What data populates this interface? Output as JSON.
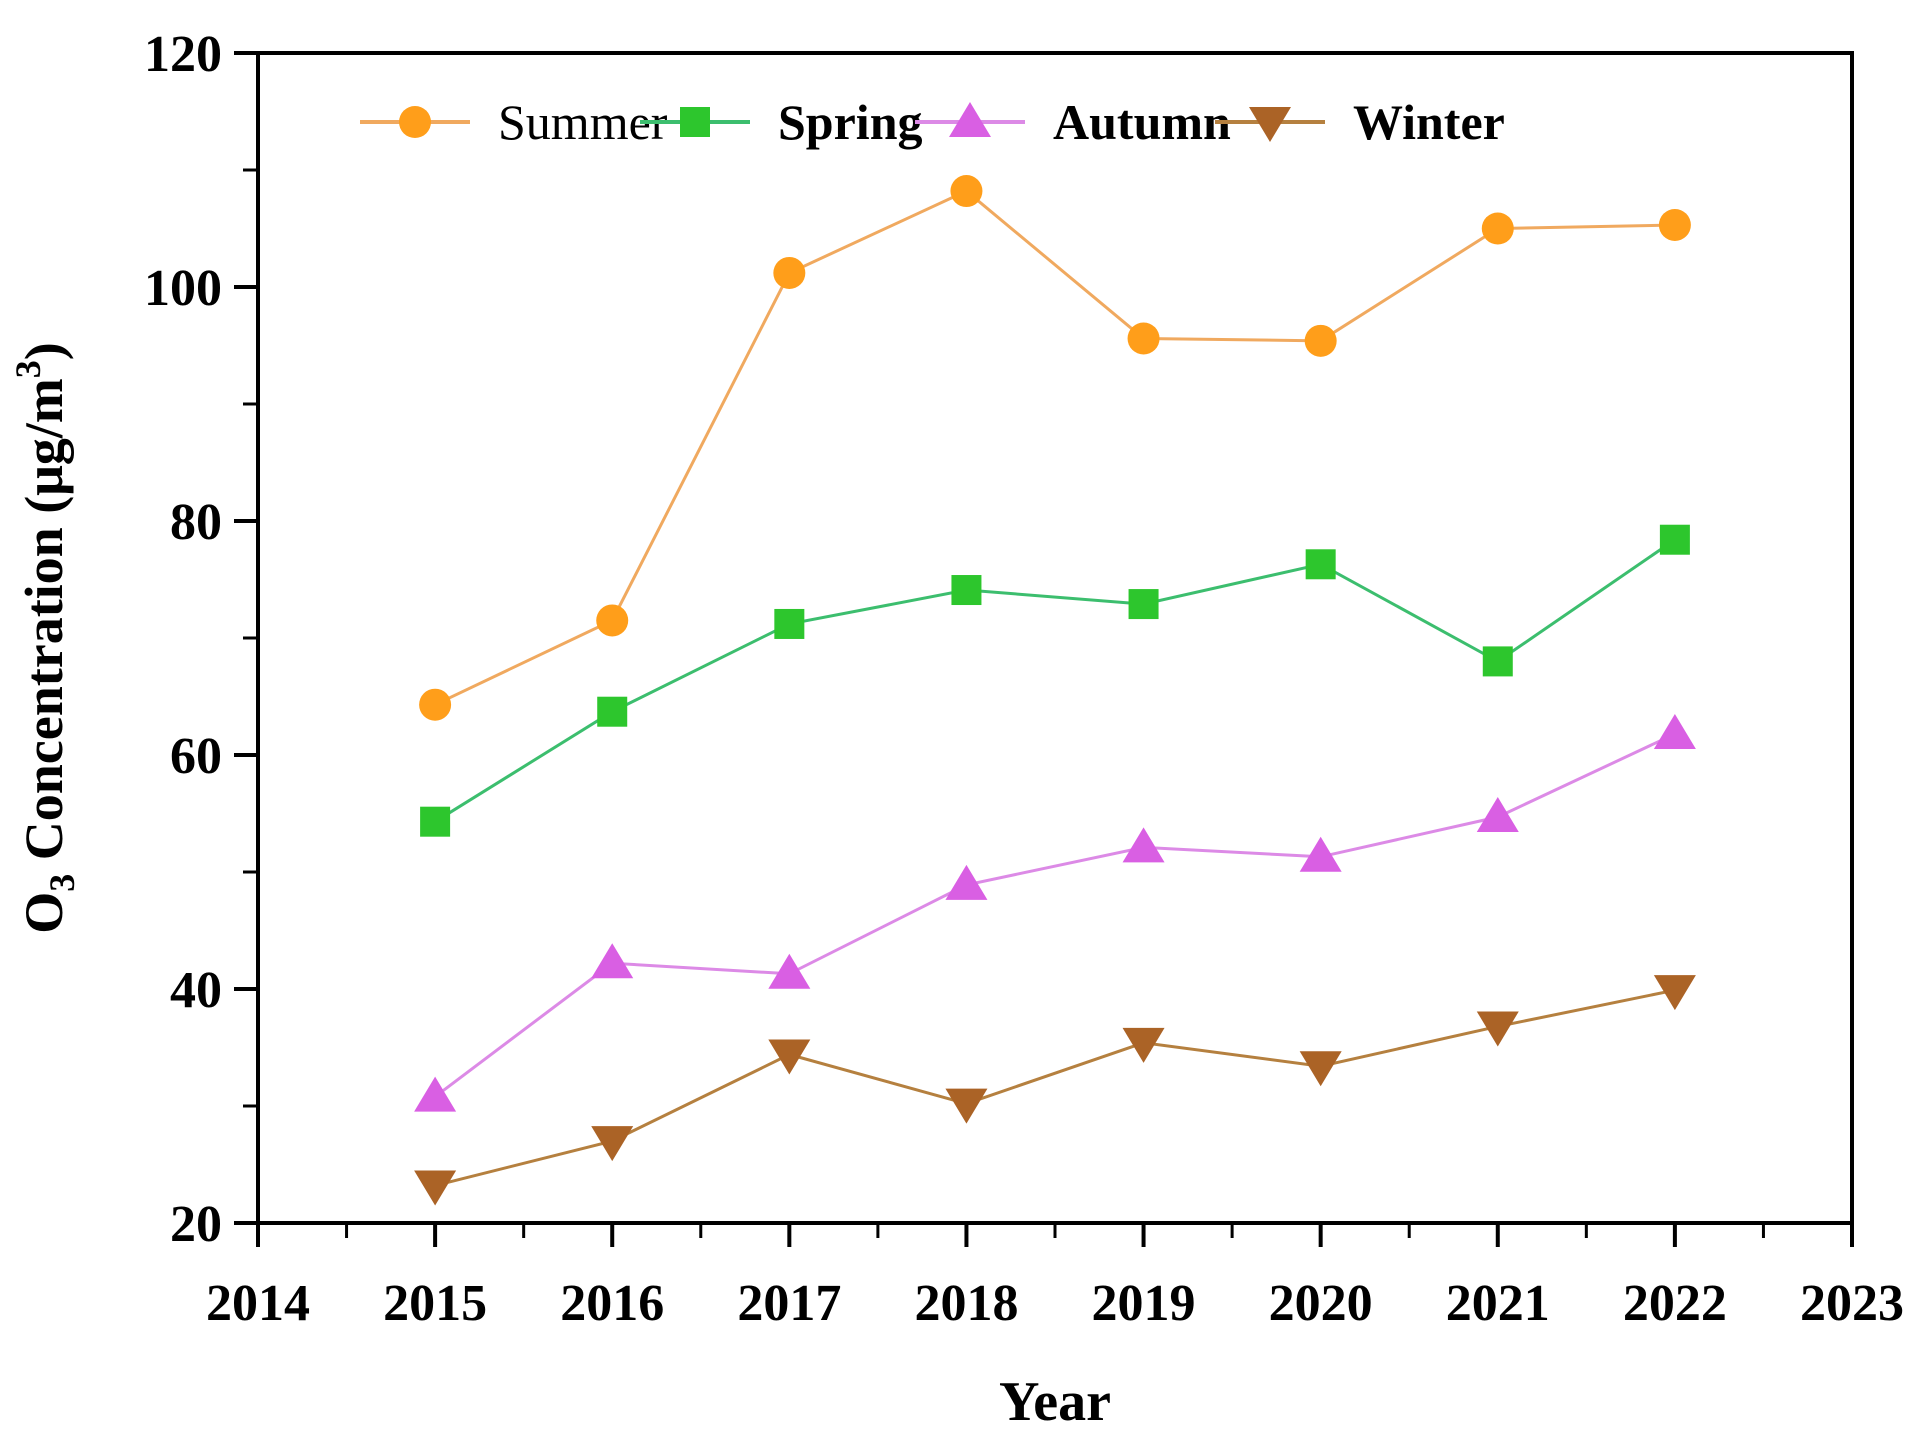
{
  "chart_data": {
    "type": "line",
    "title": "",
    "xlabel": "Year",
    "ylabel": {
      "plain": "O3 Concentration (μg/m3)",
      "prefix": "O",
      "sub": "3",
      "mid": " Concentration (μg/m",
      "sup": "3",
      "suffix": ")"
    },
    "x": [
      2015,
      2016,
      2017,
      2018,
      2019,
      2020,
      2021,
      2022
    ],
    "xlim": [
      2014,
      2023
    ],
    "ylim": [
      20,
      120
    ],
    "x_major_ticks": [
      2014,
      2015,
      2016,
      2017,
      2018,
      2019,
      2020,
      2021,
      2022,
      2023
    ],
    "x_minor_step": 0.5,
    "y_major_ticks": [
      20,
      40,
      60,
      80,
      100,
      120
    ],
    "y_minor_step": 10,
    "grid": false,
    "legend_position": "top-inside",
    "axis_color": "#000000",
    "series": [
      {
        "name": "Summer",
        "marker": "circle",
        "color": "#FF9E1A",
        "line_color": "#F0A95F",
        "bold_label": false,
        "values": [
          64.3,
          71.5,
          101.2,
          108.2,
          95.6,
          95.4,
          105.0,
          105.3
        ]
      },
      {
        "name": "Spring",
        "marker": "square",
        "color": "#2DC62D",
        "line_color": "#3CBE6E",
        "bold_label": true,
        "values": [
          54.3,
          63.7,
          71.2,
          74.1,
          72.9,
          76.3,
          68.0,
          78.4
        ]
      },
      {
        "name": "Autumn",
        "marker": "triangle-up",
        "color": "#D95FE3",
        "line_color": "#DC8AE6",
        "bold_label": true,
        "values": [
          30.8,
          42.2,
          41.3,
          48.9,
          52.1,
          51.3,
          54.7,
          61.8
        ]
      },
      {
        "name": "Winter",
        "marker": "triangle-down",
        "color": "#AB6326",
        "line_color": "#B5803F",
        "bold_label": true,
        "values": [
          23.2,
          27.0,
          34.4,
          30.2,
          35.4,
          33.4,
          36.8,
          39.9
        ]
      }
    ]
  }
}
